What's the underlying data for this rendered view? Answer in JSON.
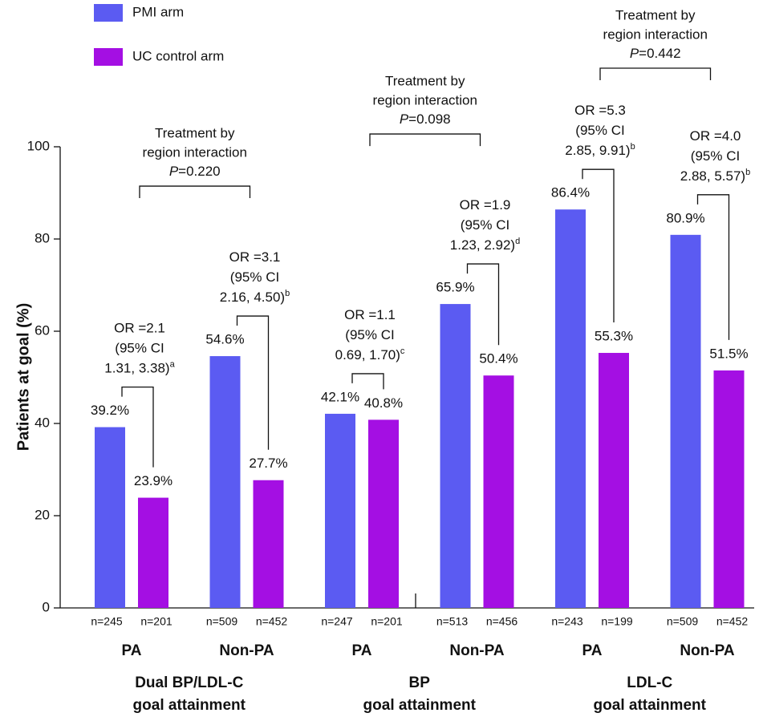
{
  "chart_data": {
    "type": "bar",
    "ylabel": "Patients at goal (%)",
    "categories": [
      "PA",
      "Non-PA",
      "PA",
      "Non-PA",
      "PA",
      "Non-PA"
    ],
    "category_groups": [
      {
        "lines": [
          "Dual BP/LDL-C",
          "goal attainment"
        ]
      },
      {
        "lines": [
          "BP",
          "goal attainment"
        ]
      },
      {
        "lines": [
          "LDL-C",
          "goal attainment"
        ]
      }
    ],
    "series": [
      {
        "name": "PMI arm",
        "color": "#5b5bf2",
        "values": [
          39.2,
          54.6,
          42.1,
          65.9,
          86.4,
          80.9
        ],
        "value_labels": [
          "39.2%",
          "54.6%",
          "42.1%",
          "65.9%",
          "86.4%",
          "80.9%"
        ],
        "n_labels": [
          "n=245",
          "n=509",
          "n=247",
          "n=513",
          "n=243",
          "n=509"
        ]
      },
      {
        "name": "UC control arm",
        "color": "#a40fe3",
        "values": [
          23.9,
          27.7,
          40.8,
          50.4,
          55.3,
          51.5
        ],
        "value_labels": [
          "23.9%",
          "27.7%",
          "40.8%",
          "50.4%",
          "55.3%",
          "51.5%"
        ],
        "n_labels": [
          "n=201",
          "n=452",
          "n=201",
          "n=456",
          "n=199",
          "n=452"
        ]
      }
    ],
    "odds_ratios": [
      {
        "lines": [
          "OR =2.1",
          "(95% CI",
          "1.31, 3.38)"
        ],
        "note": "a"
      },
      {
        "lines": [
          "OR =3.1",
          "(95% CI",
          "2.16, 4.50)"
        ],
        "note": "b"
      },
      {
        "lines": [
          "OR =1.1",
          "(95% CI",
          "0.69, 1.70)"
        ],
        "note": "c"
      },
      {
        "lines": [
          "OR =1.9",
          "(95% CI",
          "1.23, 2.92)"
        ],
        "note": "d"
      },
      {
        "lines": [
          "OR =5.3",
          "(95% CI",
          "2.85, 9.91)"
        ],
        "note": "b"
      },
      {
        "lines": [
          "OR =4.0",
          "(95% CI",
          "2.88, 5.57)"
        ],
        "note": "b"
      }
    ],
    "interactions": [
      {
        "lines": [
          "Treatment by",
          "region interaction"
        ],
        "p_symbol": "P",
        "p_text": "=0.220"
      },
      {
        "lines": [
          "Treatment by",
          "region interaction"
        ],
        "p_symbol": "P",
        "p_text": "=0.098"
      },
      {
        "lines": [
          "Treatment by",
          "region interaction"
        ],
        "p_symbol": "P",
        "p_text": "=0.442"
      }
    ],
    "ylim": [
      0,
      100
    ],
    "yticks": [
      0,
      20,
      40,
      60,
      80,
      100
    ]
  }
}
